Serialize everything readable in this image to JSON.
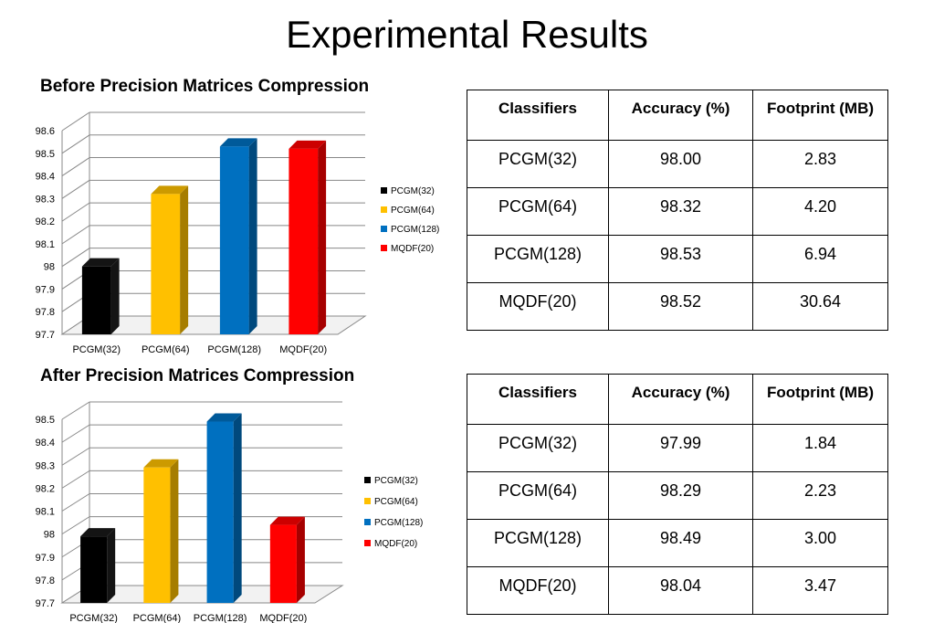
{
  "page": {
    "title": "Experimental Results"
  },
  "charts": {
    "before_title": "Before Precision Matrices Compression",
    "after_title": "After Precision Matrices Compression"
  },
  "colors": {
    "PCGM(32)": "#000000",
    "PCGM(64)": "#FFC000",
    "PCGM(128)": "#0070C0",
    "MQDF(20)": "#FF0000"
  },
  "chart_data": [
    {
      "type": "bar",
      "title": "Before Precision Matrices Compression",
      "categories": [
        "PCGM(32)",
        "PCGM(64)",
        "PCGM(128)",
        "MQDF(20)"
      ],
      "values": [
        98.0,
        98.32,
        98.53,
        98.52
      ],
      "ylim": [
        97.7,
        98.6
      ],
      "yticks": [
        "97.7",
        "97.8",
        "97.9",
        "98",
        "98.1",
        "98.2",
        "98.3",
        "98.4",
        "98.5",
        "98.6"
      ],
      "legend": [
        "PCGM(32)",
        "PCGM(64)",
        "PCGM(128)",
        "MQDF(20)"
      ],
      "legend_position": "right",
      "grid": true
    },
    {
      "type": "bar",
      "title": "After Precision Matrices Compression",
      "categories": [
        "PCGM(32)",
        "PCGM(64)",
        "PCGM(128)",
        "MQDF(20)"
      ],
      "values": [
        97.99,
        98.29,
        98.49,
        98.04
      ],
      "ylim": [
        97.7,
        98.5
      ],
      "yticks": [
        "97.7",
        "97.8",
        "97.9",
        "98",
        "98.1",
        "98.2",
        "98.3",
        "98.4",
        "98.5"
      ],
      "legend": [
        "PCGM(32)",
        "PCGM(64)",
        "PCGM(128)",
        "MQDF(20)"
      ],
      "legend_position": "right",
      "grid": true
    }
  ],
  "tables": {
    "before": {
      "headers": [
        "Classifiers",
        "Accuracy (%)",
        "Footprint (MB)"
      ],
      "rows": [
        [
          "PCGM(32)",
          "98.00",
          "2.83"
        ],
        [
          "PCGM(64)",
          "98.32",
          "4.20"
        ],
        [
          "PCGM(128)",
          "98.53",
          "6.94"
        ],
        [
          "MQDF(20)",
          "98.52",
          "30.64"
        ]
      ]
    },
    "after": {
      "headers": [
        "Classifiers",
        "Accuracy (%)",
        "Footprint (MB)"
      ],
      "rows": [
        [
          "PCGM(32)",
          "97.99",
          "1.84"
        ],
        [
          "PCGM(64)",
          "98.29",
          "2.23"
        ],
        [
          "PCGM(128)",
          "98.49",
          "3.00"
        ],
        [
          "MQDF(20)",
          "98.04",
          "3.47"
        ]
      ]
    }
  }
}
